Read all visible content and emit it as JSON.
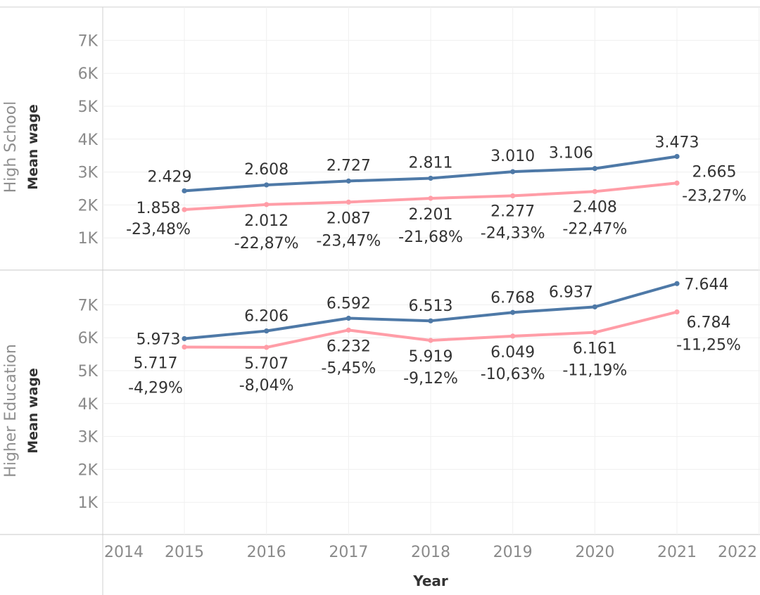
{
  "chart_data": {
    "type": "line",
    "x_axis": {
      "title": "Year",
      "range": [
        2014,
        2022
      ],
      "ticks": [
        "2014",
        "2015",
        "2016",
        "2017",
        "2018",
        "2019",
        "2020",
        "2021",
        "2022"
      ]
    },
    "grid": true,
    "colors": {
      "series_1": "#4e79a7",
      "series_2": "#ff9da7"
    },
    "panes": [
      {
        "row_label": "High School",
        "ylabel": "Mean wage",
        "ylim": [
          0,
          7800
        ],
        "y_ticks": [
          {
            "value": 1000,
            "label": "1K"
          },
          {
            "value": 2000,
            "label": "2K"
          },
          {
            "value": 3000,
            "label": "3K"
          },
          {
            "value": 4000,
            "label": "4K"
          },
          {
            "value": 5000,
            "label": "5K"
          },
          {
            "value": 6000,
            "label": "6K"
          },
          {
            "value": 7000,
            "label": "7K"
          }
        ],
        "x": [
          2015,
          2016,
          2017,
          2018,
          2019,
          2020,
          2021
        ],
        "series": [
          {
            "values": [
              2429,
              2608,
              2727,
              2811,
              3010,
              3106,
              3473
            ],
            "labels": [
              "2.429",
              "2.608",
              "2.727",
              "2.811",
              "3.010",
              "3.106",
              "3.473"
            ]
          },
          {
            "values": [
              1858,
              2012,
              2087,
              2201,
              2277,
              2408,
              2665
            ],
            "labels": [
              "1.858",
              "2.012",
              "2.087",
              "2.201",
              "2.277",
              "2.408",
              "2.665"
            ],
            "diff_labels": [
              "-23,48%",
              "-22,87%",
              "-23,47%",
              "-21,68%",
              "-24,33%",
              "-22,47%",
              "-23,27%"
            ]
          }
        ]
      },
      {
        "row_label": "Higher Education",
        "ylabel": "Mean wage",
        "ylim": [
          0,
          7800
        ],
        "y_ticks": [
          {
            "value": 1000,
            "label": "1K"
          },
          {
            "value": 2000,
            "label": "2K"
          },
          {
            "value": 3000,
            "label": "3K"
          },
          {
            "value": 4000,
            "label": "4K"
          },
          {
            "value": 5000,
            "label": "5K"
          },
          {
            "value": 6000,
            "label": "6K"
          },
          {
            "value": 7000,
            "label": "7K"
          }
        ],
        "x": [
          2015,
          2016,
          2017,
          2018,
          2019,
          2020,
          2021
        ],
        "series": [
          {
            "values": [
              5973,
              6206,
              6592,
              6513,
              6768,
              6937,
              7644
            ],
            "labels": [
              "5.973",
              "6.206",
              "6.592",
              "6.513",
              "6.768",
              "6.937",
              "7.644"
            ]
          },
          {
            "values": [
              5717,
              5707,
              6232,
              5919,
              6049,
              6161,
              6784
            ],
            "labels": [
              "5.717",
              "5.707",
              "6.232",
              "5.919",
              "6.049",
              "6.161",
              "6.784"
            ],
            "diff_labels": [
              "-4,29%",
              "-8,04%",
              "-5,45%",
              "-9,12%",
              "-10,63%",
              "-11,19%",
              "-11,25%"
            ]
          }
        ]
      }
    ]
  }
}
